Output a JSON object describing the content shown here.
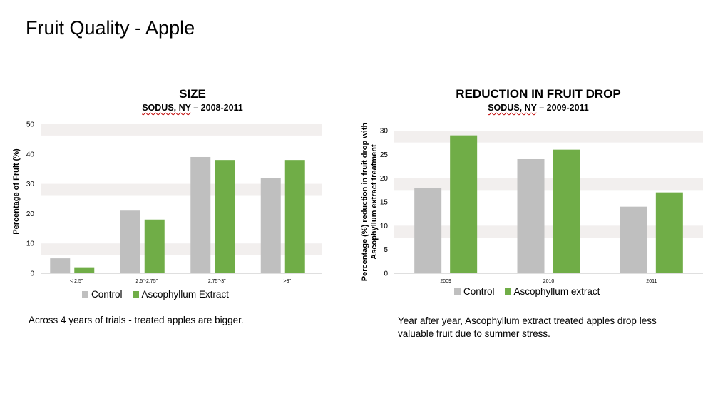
{
  "slide": {
    "title": "Fruit Quality - Apple"
  },
  "colors": {
    "control": "#bfbfbf",
    "extract": "#70ad47",
    "band": "#f2efee"
  },
  "charts": {
    "size": {
      "title": "SIZE",
      "subtitle_pre": "SODUS, NY",
      "subtitle_squig": "",
      "subtitle_post": " – 2008-2011",
      "caption": "Across 4 years of trials - treated apples are bigger.",
      "legend": [
        "Control",
        "Ascophyllum Extract"
      ]
    },
    "drop": {
      "title": "REDUCTION IN FRUIT DROP",
      "subtitle_pre": "SODUS, NY",
      "subtitle_post": " – 2009-2011",
      "caption_line1": "Year after year, Ascophyllum extract treated apples drop less",
      "caption_line2": "valuable fruit due to summer stress.",
      "legend": [
        "Control",
        "Ascophyllum extract"
      ]
    }
  },
  "chart_data": [
    {
      "type": "bar",
      "title": "SIZE",
      "subtitle": "SODUS, NY – 2008-2011",
      "ylabel": "Percentage of Fruit (%)",
      "xlabel": "",
      "categories": [
        "< 2.5\"",
        "2.5\"-2.75\"",
        "2.75\"-3\"",
        ">3\""
      ],
      "series": [
        {
          "name": "Control",
          "values": [
            5,
            21,
            39,
            32
          ]
        },
        {
          "name": "Ascophyllum Extract",
          "values": [
            2,
            18,
            38,
            38
          ]
        }
      ],
      "ylim": [
        0,
        50
      ],
      "yticks": [
        0,
        10,
        20,
        30,
        40,
        50
      ],
      "legend_position": "bottom",
      "grid": "alternating bands"
    },
    {
      "type": "bar",
      "title": "REDUCTION IN FRUIT DROP",
      "subtitle": "SODUS, NY – 2009-2011",
      "ylabel": "Percentage (%) reduction in fruit drop with Ascophyllum extract treatment",
      "ylabel_lines": [
        "Percentage (%) reduction in fruit drop with",
        "Ascophyllum extract treatment"
      ],
      "xlabel": "",
      "categories": [
        "2009",
        "2010",
        "2011"
      ],
      "series": [
        {
          "name": "Control",
          "values": [
            18,
            24,
            14
          ]
        },
        {
          "name": "Ascophyllum extract",
          "values": [
            29,
            26,
            17
          ]
        }
      ],
      "ylim": [
        0,
        30
      ],
      "yticks": [
        0,
        5,
        10,
        15,
        20,
        25,
        30
      ],
      "legend_position": "bottom",
      "grid": "alternating bands"
    }
  ]
}
